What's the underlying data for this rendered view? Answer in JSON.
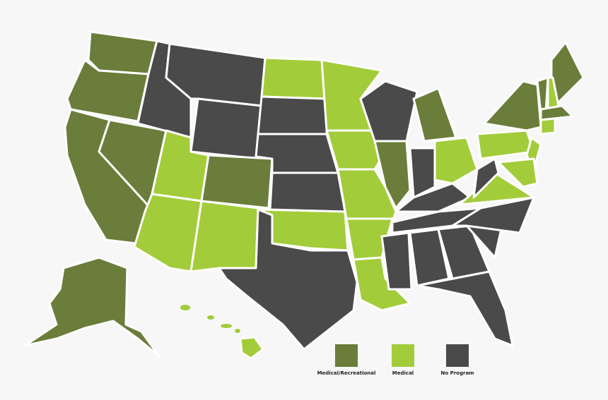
{
  "legend": [
    {
      "key": "mr",
      "label": "Medical/Recreational",
      "color": "#6a7d3a"
    },
    {
      "key": "med",
      "label": "Medical",
      "color": "#a3cc3a"
    },
    {
      "key": "none",
      "label": "No Program",
      "color": "#4a4a4a"
    }
  ],
  "states": {
    "WA": "mr",
    "OR": "mr",
    "CA": "mr",
    "NV": "mr",
    "CO": "mr",
    "MI": "mr",
    "IL": "mr",
    "ME": "mr",
    "VT": "mr",
    "MA": "mr",
    "AK": "mr",
    "NY": "mr",
    "UT": "med",
    "AZ": "med",
    "NM": "med",
    "ND": "med",
    "MN": "med",
    "IA": "med",
    "MO": "med",
    "AR": "med",
    "OK": "med",
    "LA": "med",
    "OH": "med",
    "PA": "med",
    "NJ": "med",
    "NH": "med",
    "CT": "med",
    "VA": "med",
    "MD": "med",
    "HI": "med",
    "ID": "none",
    "MT": "none",
    "WY": "none",
    "SD": "none",
    "NE": "none",
    "KS": "none",
    "TX": "none",
    "WI": "none",
    "IN": "none",
    "KY": "none",
    "TN": "none",
    "MS": "none",
    "AL": "none",
    "GA": "none",
    "SC": "none",
    "NC": "none",
    "WV": "none",
    "FL": "none"
  }
}
